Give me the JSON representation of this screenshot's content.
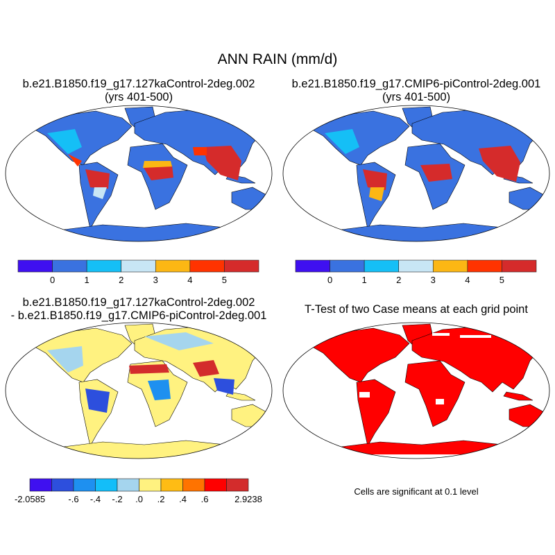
{
  "title": "ANN RAIN (mm/d)",
  "panels": [
    {
      "title_line1": "b.e21.B1850.f19_g17.127kaControl-2deg.002",
      "title_line2": "(yrs 401-500)"
    },
    {
      "title_line1": "b.e21.B1850.f19_g17.CMIP6-piControl-2deg.001",
      "title_line2": "(yrs 401-500)"
    },
    {
      "title_line1": "b.e21.B1850.f19_g17.127kaControl-2deg.002",
      "title_line2": "- b.e21.B1850.f19_g17.CMIP6-piControl-2deg.001"
    },
    {
      "title_line1": "T-Test of two Case means at each grid point",
      "footer": "Cells are significant at 0.1 level"
    }
  ],
  "colorbar_top": {
    "colors": [
      "#3F10F0",
      "#3A72E0",
      "#15BFF6",
      "#C8E6F5",
      "#FCB714",
      "#FF3300",
      "#D52B2B"
    ],
    "labels": [
      "0",
      "1",
      "2",
      "3",
      "4",
      "5"
    ]
  },
  "colorbar_diff": {
    "colors": [
      "#3F10F0",
      "#2D4FDD",
      "#1E90F0",
      "#13BEF9",
      "#A5D5EE",
      "#FFF280",
      "#FFBC14",
      "#FF7300",
      "#FF0000",
      "#D32C2C"
    ],
    "min_label": "-2.0585",
    "labels": [
      "-.6",
      "-.4",
      "-.2",
      ".0",
      ".2",
      ".4",
      ".6"
    ],
    "max_label": "2.9238"
  },
  "significance_color": "#FF0000"
}
